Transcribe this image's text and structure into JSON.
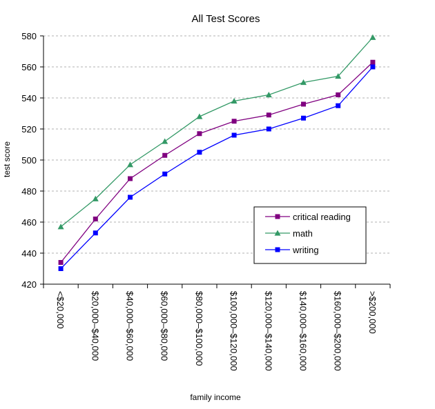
{
  "chart_data": {
    "type": "line",
    "title": "All Test Scores",
    "xlabel": "family income",
    "ylabel": "test score",
    "ylim": [
      420,
      580
    ],
    "yticks": [
      420,
      440,
      460,
      480,
      500,
      520,
      540,
      560,
      580
    ],
    "grid": "horizontal dashed",
    "legend_position": "right-center",
    "categories": [
      "<$20,000",
      "$20,000–$40,000",
      "$40,000–$60,000",
      "$60,000–$80,000",
      "$80,000–$100,000",
      "$100,000–$120,000",
      "$120,000–$140,000",
      "$140,000–$160,000",
      "$160,000–$200,000",
      ">$200,000"
    ],
    "series": [
      {
        "name": "critical reading",
        "color": "#800080",
        "marker": "square",
        "values": [
          434,
          462,
          488,
          503,
          517,
          525,
          529,
          536,
          542,
          563
        ]
      },
      {
        "name": "math",
        "color": "#339966",
        "marker": "triangle",
        "values": [
          457,
          475,
          497,
          512,
          528,
          538,
          542,
          550,
          554,
          579
        ]
      },
      {
        "name": "writing",
        "color": "#0000ff",
        "marker": "square",
        "values": [
          430,
          453,
          476,
          491,
          505,
          516,
          520,
          527,
          535,
          560
        ]
      }
    ]
  }
}
